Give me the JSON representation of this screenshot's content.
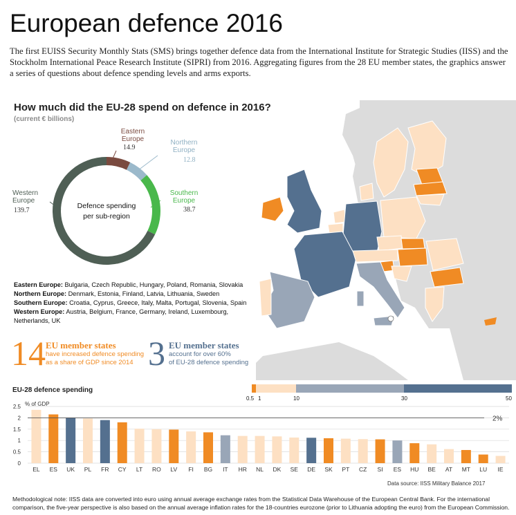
{
  "header": {
    "title": "European defence 2016",
    "intro": "The first EUISS Security Monthly Stats (SMS) brings together defence data from the International Institute for Strategic Studies (IISS) and the Stockholm International Peace Research Institute (SIPRI) from 2016. Aggregating figures from the 28 EU member states, the graphics answer a series of questions about defence spending levels and arms exports."
  },
  "colors": {
    "western": "#4f5f55",
    "southern": "#49b84b",
    "eastern": "#7a4a3f",
    "northern": "#9bb9cb",
    "orange": "#f08b24",
    "peach": "#fde0c3",
    "lightblue_grey": "#99a6b7",
    "dark_blue": "#54708f",
    "sea": "#ffffff",
    "land_non_eu": "#dcdcdc"
  },
  "question": {
    "title": "How much did the EU-28 spend on defence in 2016?",
    "subtitle": "(current € billions)",
    "center_line1": "Defence spending",
    "center_line2": "per sub-region"
  },
  "region_lists": [
    {
      "name": "Eastern Europe:",
      "members": "Bulgaria, Czech Republic, Hungary, Poland, Romania, Slovakia"
    },
    {
      "name": "Northern Europe:",
      "members": "Denmark, Estonia, Finland, Latvia, Lithuania, Sweden"
    },
    {
      "name": "Southern Europe:",
      "members": "Croatia, Cyprus, Greece, Italy, Malta, Portugal, Slovenia, Spain"
    },
    {
      "name": "Western Europe:",
      "members": "Austria, Belgium, France, Germany, Ireland, Luxembourg, Netherlands, UK"
    }
  ],
  "stats": {
    "left_num": "14",
    "left_head": "EU member states",
    "left_line1": "have increased defence spending",
    "left_line2": "as a share of GDP since 2014",
    "right_num": "3",
    "right_head": "EU member states",
    "right_line1": "account for over 60%",
    "right_line2": "of EU-28 defence spending"
  },
  "scale": {
    "labels": [
      "0.5",
      "1",
      "10",
      "30",
      "50"
    ]
  },
  "bar_title": "EU-28 defence spending",
  "source": "Data source: IISS Military Balance 2017",
  "note": "Methodological note: IISS data are converted into euro using annual average exchange rates from the Statistical Data Warehouse of the European Central Bank. For the international comparison, the five-year perspective is also based on the annual average inflation rates for the 18-countries eurozone (prior to Lithuania adopting the euro) from the European Commission.",
  "chart_data": [
    {
      "type": "pie",
      "title": "How much did the EU-28 spend on defence in 2016?",
      "subtitle": "(current € billions)",
      "slices": [
        {
          "label": "Eastern Europe",
          "value": 14.9,
          "display": "14.9",
          "color": "#7a4a3f"
        },
        {
          "label": "Northern Europe",
          "value": 12.8,
          "display": "12.8",
          "color": "#9bb9cb"
        },
        {
          "label": "Southern Europe",
          "value": 38.7,
          "display": "38.7",
          "color": "#49b84b"
        },
        {
          "label": "Western Europe",
          "value": 139.7,
          "display": "139.7",
          "color": "#4f5f55"
        }
      ]
    },
    {
      "type": "bar",
      "title": "EU-28 defence spending",
      "ylabel": "% of GDP",
      "ylim": [
        0,
        2.5
      ],
      "yticks": [
        0,
        0.5,
        1,
        1.5,
        2,
        2.5
      ],
      "reference_line": {
        "value": 2,
        "label": "2%"
      },
      "categories": [
        "EL",
        "ES",
        "UK",
        "PL",
        "FR",
        "CY",
        "LT",
        "RO",
        "LV",
        "FI",
        "BG",
        "IT",
        "HR",
        "NL",
        "DK",
        "SE",
        "DE",
        "SK",
        "PT",
        "CZ",
        "SI",
        "ES",
        "HU",
        "BE",
        "AT",
        "MT",
        "LU",
        "IE"
      ],
      "values": [
        2.35,
        2.15,
        2.0,
        1.97,
        1.9,
        1.8,
        1.52,
        1.5,
        1.48,
        1.4,
        1.36,
        1.23,
        1.2,
        1.2,
        1.18,
        1.13,
        1.12,
        1.1,
        1.08,
        1.06,
        1.05,
        1.0,
        0.88,
        0.83,
        0.62,
        0.58,
        0.38,
        0.32
      ],
      "colors": [
        "#fde0c3",
        "#f08b24",
        "#54708f",
        "#fde0c3",
        "#54708f",
        "#f08b24",
        "#fde0c3",
        "#fde0c3",
        "#f08b24",
        "#fde0c3",
        "#f08b24",
        "#99a6b7",
        "#fde0c3",
        "#fde0c3",
        "#fde0c3",
        "#fde0c3",
        "#54708f",
        "#f08b24",
        "#fde0c3",
        "#fde0c3",
        "#f08b24",
        "#99a6b7",
        "#f08b24",
        "#fde0c3",
        "#fde0c3",
        "#f08b24",
        "#f08b24",
        "#fde0c3"
      ]
    }
  ]
}
